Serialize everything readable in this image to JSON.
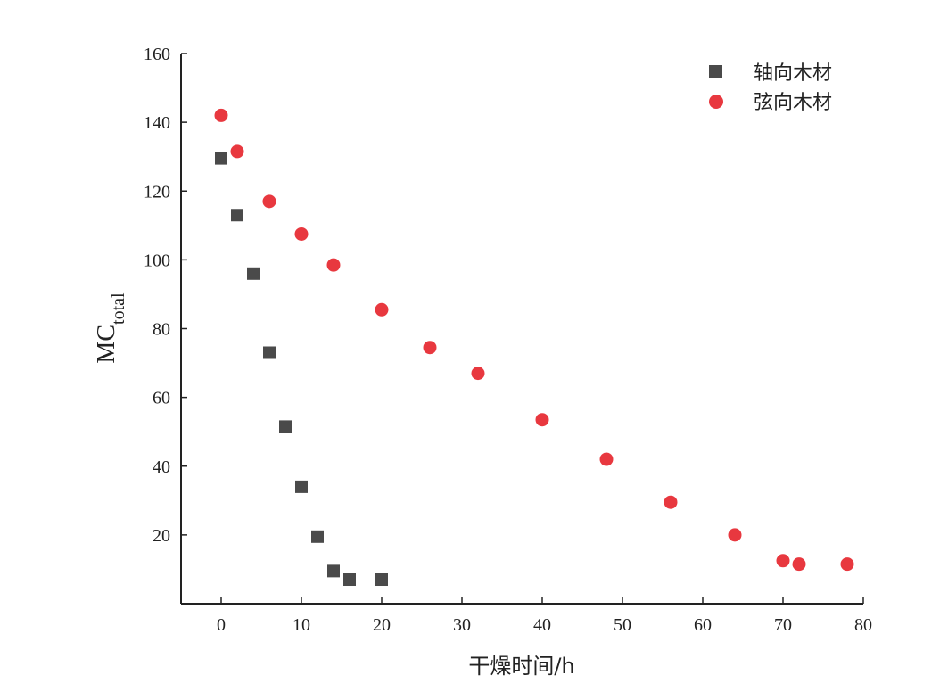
{
  "chart_data": {
    "type": "scatter",
    "title": "",
    "xlabel": "干燥时间/h",
    "ylabel": "MC",
    "ylabel_subscript": "total",
    "xlim": [
      -5,
      80
    ],
    "ylim": [
      0,
      160
    ],
    "xticks": [
      0,
      10,
      20,
      30,
      40,
      50,
      60,
      70,
      80
    ],
    "yticks": [
      20,
      40,
      60,
      80,
      100,
      120,
      140,
      160
    ],
    "grid": false,
    "legend_position": "top-right",
    "series": [
      {
        "name": "轴向木材",
        "marker": "square",
        "color": "#4a4a4a",
        "x": [
          0,
          2,
          4,
          6,
          8,
          10,
          12,
          14,
          16,
          20
        ],
        "y": [
          129.5,
          113,
          96,
          73,
          51.5,
          34,
          19.5,
          9.5,
          7,
          7
        ]
      },
      {
        "name": "弦向木材",
        "marker": "circle",
        "color": "#e8383f",
        "x": [
          0,
          2,
          6,
          10,
          14,
          20,
          26,
          32,
          40,
          48,
          56,
          64,
          70,
          72,
          78
        ],
        "y": [
          142,
          131.5,
          117,
          107.5,
          98.5,
          85.5,
          74.5,
          67,
          53.5,
          42,
          29.5,
          20,
          12.5,
          11.5,
          11.5
        ]
      }
    ]
  }
}
